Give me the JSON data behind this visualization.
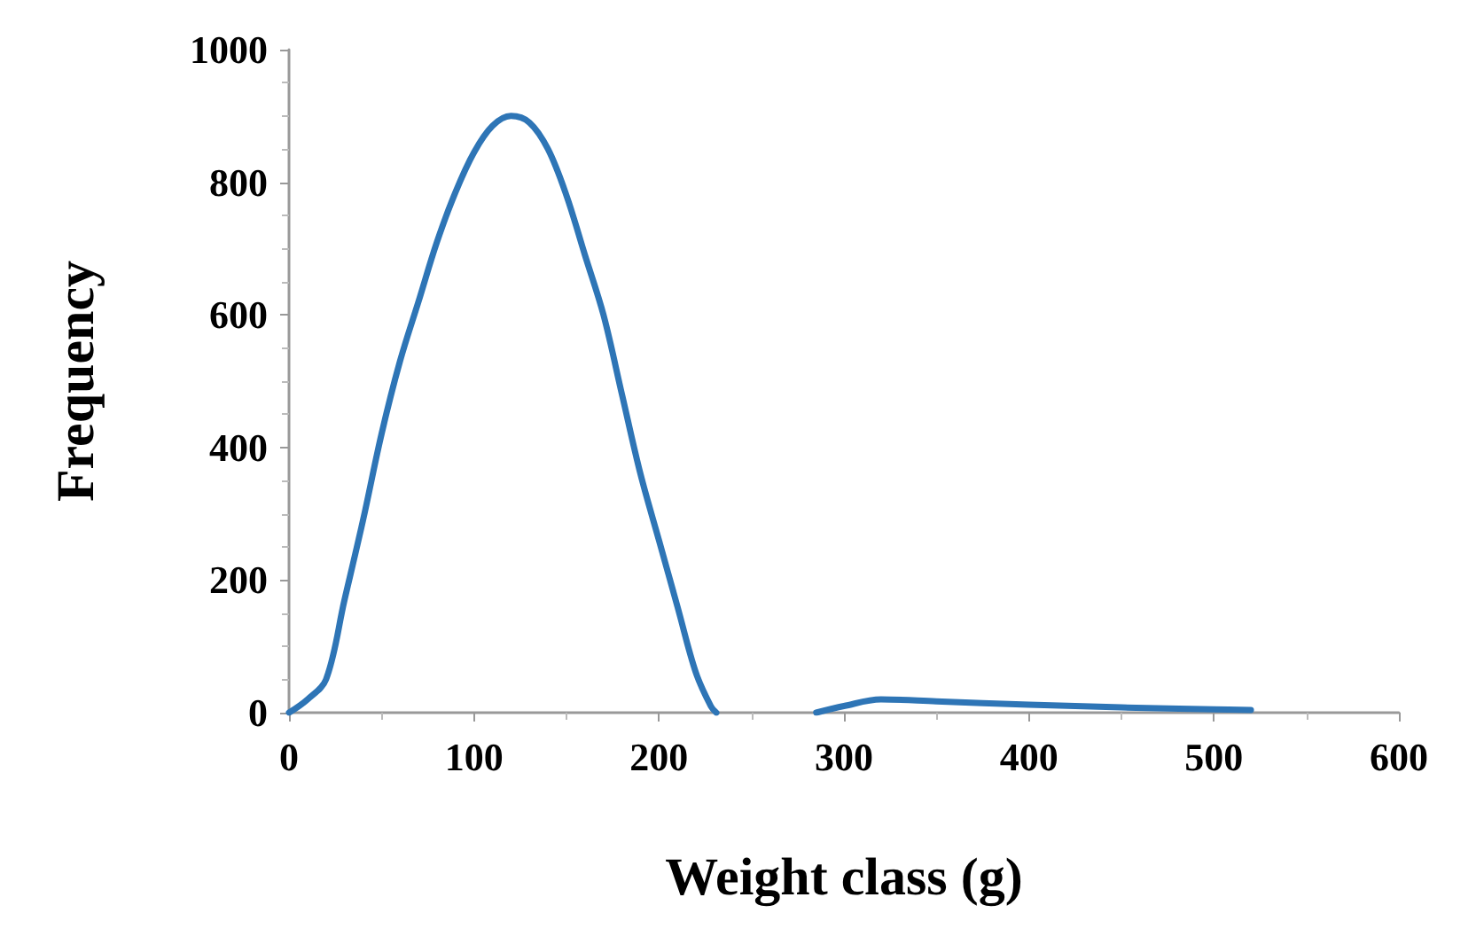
{
  "chart_data": {
    "type": "line",
    "xlabel": "Weight class (g)",
    "ylabel": "Frequency",
    "x": [
      0,
      10,
      20,
      30,
      40,
      50,
      60,
      70,
      80,
      90,
      100,
      110,
      120,
      130,
      140,
      150,
      160,
      170,
      180,
      190,
      200,
      210,
      220,
      228,
      231,
      255,
      285,
      300,
      320,
      350,
      400,
      450,
      500,
      520
    ],
    "series": [
      {
        "color": "#2e75b6",
        "values": [
          0,
          20,
          50,
          170,
          290,
          420,
          530,
          620,
          710,
          785,
          845,
          885,
          900,
          890,
          850,
          780,
          690,
          600,
          480,
          360,
          260,
          160,
          60,
          10,
          0,
          null,
          0,
          10,
          20,
          17,
          12,
          8,
          5,
          4
        ]
      }
    ],
    "xlim": [
      0,
      600
    ],
    "xticks": [
      0,
      100,
      200,
      300,
      400,
      500,
      600
    ],
    "ylim": [
      0,
      1000
    ],
    "yticks": [
      0,
      200,
      400,
      600,
      800,
      1000
    ]
  }
}
